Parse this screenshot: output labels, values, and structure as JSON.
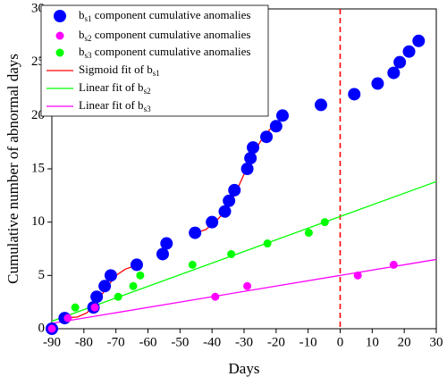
{
  "chart_data": {
    "type": "scatter",
    "x_label": "Days",
    "y_label": "Cumulative number of abnormal days",
    "xlim": [
      -90,
      30
    ],
    "xticks": [
      -90,
      -80,
      -70,
      -60,
      -50,
      -40,
      -30,
      -20,
      -10,
      0,
      10,
      20,
      30
    ],
    "ylim": [
      0,
      30
    ],
    "yticks": [
      0,
      5,
      10,
      15,
      20,
      25,
      30
    ],
    "vline": 0,
    "vline_color": "#ff0000",
    "legend": "upper left",
    "series": [
      {
        "name": "bs1 component cumulative anomalies",
        "type": "scatter",
        "color": "#0000ff",
        "marker_size": 7,
        "x": [
          -90,
          -86,
          -77,
          -76,
          -73.5,
          -71.6,
          -63.5,
          -55.4,
          -54.2,
          -45.3,
          -40,
          -36,
          -34.7,
          -33,
          -29,
          -28,
          -27.2,
          -23,
          -20,
          -18,
          -6,
          4.4,
          11.7,
          16.7,
          18.6,
          21.5,
          24.5
        ],
        "values": [
          0,
          1,
          2,
          3,
          4,
          5,
          6,
          7,
          8,
          9,
          10,
          11,
          12,
          13,
          15,
          16,
          17,
          18,
          19,
          20,
          21,
          22,
          23,
          24,
          25,
          26,
          27
        ]
      },
      {
        "name": "bs2 component cumulative anomalies",
        "type": "scatter",
        "color": "#ff00ff",
        "marker_size": 4.5,
        "x": [
          -90,
          -85,
          -76.6,
          -39,
          -29,
          5.5,
          16.7
        ],
        "values": [
          0,
          1,
          2,
          3,
          4,
          5,
          6
        ]
      },
      {
        "name": "bs3 component cumulative anomalies",
        "type": "scatter",
        "color": "#00ff00",
        "marker_size": 4.5,
        "x": [
          -82.7,
          -69.3,
          -64.6,
          -62.4,
          -46.1,
          -34,
          -22.7,
          -9.8,
          -4.8
        ],
        "values": [
          2,
          3,
          4,
          5,
          6,
          7,
          8,
          9,
          10
        ]
      },
      {
        "name": "Sigmoid fit of bs1",
        "type": "line",
        "color": "#ff0000",
        "x": [
          -86,
          -82,
          -79,
          -76,
          -73,
          -70,
          -67,
          -64,
          -62,
          null,
          -45,
          -42,
          -39,
          -36,
          -33,
          -30,
          -27,
          -24,
          -21,
          -18,
          -17
        ],
        "values": [
          1,
          1.1,
          1.5,
          2.5,
          3.8,
          5,
          5.6,
          5.9,
          6,
          null,
          9,
          9.3,
          10,
          11,
          12.5,
          14.5,
          16.5,
          18,
          19,
          19.8,
          20
        ]
      },
      {
        "name": "Linear fit of bs2",
        "type": "line",
        "color": "#00ff00",
        "x": [
          -90,
          30
        ],
        "values": [
          0.7,
          13.8
        ]
      },
      {
        "name": "Linear fit of bs3",
        "type": "line",
        "color": "#ff00ff",
        "x": [
          -90,
          30
        ],
        "values": [
          0.5,
          6.5
        ]
      }
    ]
  }
}
